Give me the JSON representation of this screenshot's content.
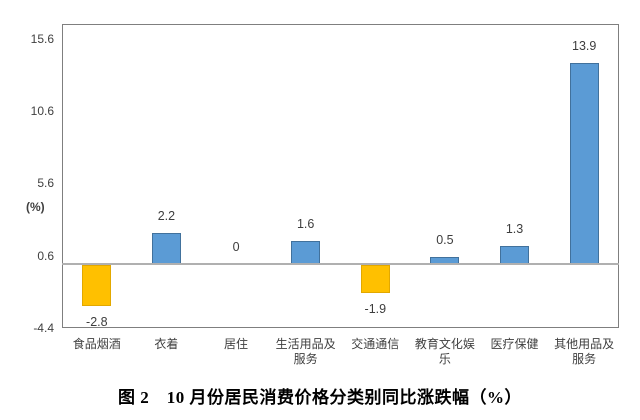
{
  "chart_data": {
    "type": "bar",
    "title": "图 2　10 月份居民消费价格分类别同比涨跌幅（%）",
    "ylabel": "(%)",
    "categories": [
      "食品烟酒",
      "衣着",
      "居住",
      "生活用品及服务",
      "交通通信",
      "教育文化娱乐",
      "医疗保健",
      "其他用品及服务"
    ],
    "category_tick_labels": [
      "食品烟酒",
      "衣着",
      "居住",
      "生活用品及\n服务",
      "交通通信",
      "教育文化娱\n乐",
      "医疗保健",
      "其他用品及\n服务"
    ],
    "values": [
      -2.8,
      2.2,
      0,
      1.6,
      -1.9,
      0.5,
      1.3,
      13.9
    ],
    "value_labels": [
      "-2.8",
      "2.2",
      "0",
      "1.6",
      "-1.9",
      "0.5",
      "1.3",
      "13.9"
    ],
    "yticks": [
      15.6,
      10.6,
      5.6,
      0.6,
      -4.4
    ],
    "ytick_labels": [
      "15.6",
      "10.6",
      "5.6",
      "0.6",
      "-4.4"
    ],
    "ylim": [
      -4.4,
      16.6
    ],
    "grid": false,
    "bar_colors": [
      "#FFC000",
      "#5B9BD5",
      "#5B9BD5",
      "#5B9BD5",
      "#FFC000",
      "#5B9BD5",
      "#5B9BD5",
      "#5B9BD5"
    ],
    "bar_border_colors": [
      "#E2A800",
      "#41719C",
      "#41719C",
      "#41719C",
      "#E2A800",
      "#41719C",
      "#41719C",
      "#41719C"
    ],
    "colors": {
      "positive_bar": "#5B9BD5",
      "positive_border": "#41719C",
      "negative_bar": "#FFC000",
      "negative_border": "#E2A800",
      "axis_line": "#B0B0B0",
      "plot_border": "#7F7F7F",
      "label_text": "#3D3D3D",
      "title_text": "#000000"
    }
  }
}
